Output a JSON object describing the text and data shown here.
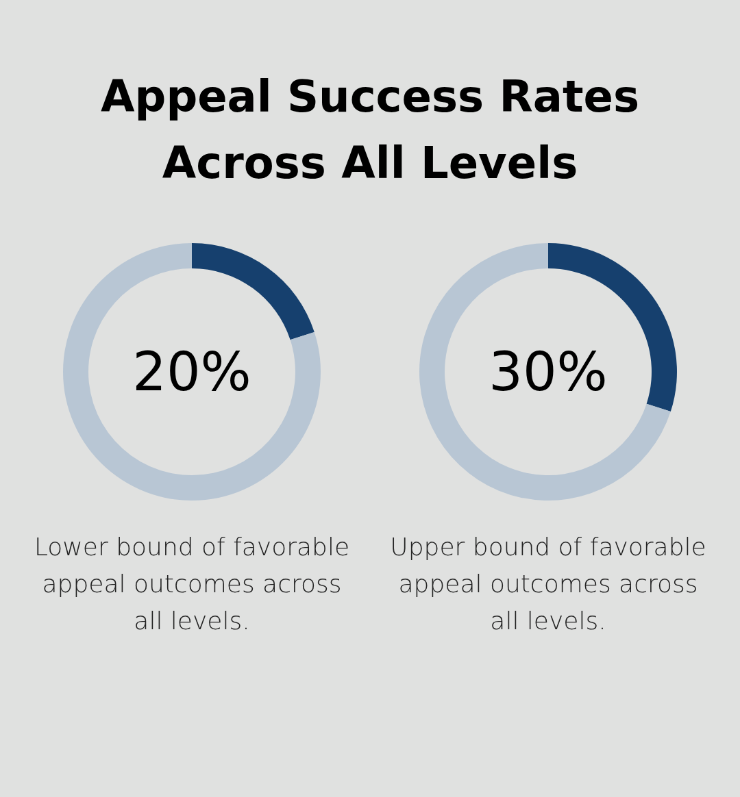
{
  "chart_data": [
    {
      "type": "donut",
      "title": "Appeal Success Rates Across All Levels",
      "categories": [
        null,
        null
      ],
      "values": [
        20,
        80
      ],
      "colors": [
        "#16406e",
        "#b8c6d4"
      ],
      "annotations": [
        "20%",
        "Lower bound of favorable appeal outcomes across all levels."
      ]
    },
    {
      "type": "donut",
      "categories": [
        null,
        null
      ],
      "values": [
        30,
        70
      ],
      "colors": [
        "#16406e",
        "#b8c6d4"
      ],
      "annotations": [
        "30%",
        "Upper bound of favorable appeal outcomes across all levels."
      ]
    }
  ]
}
